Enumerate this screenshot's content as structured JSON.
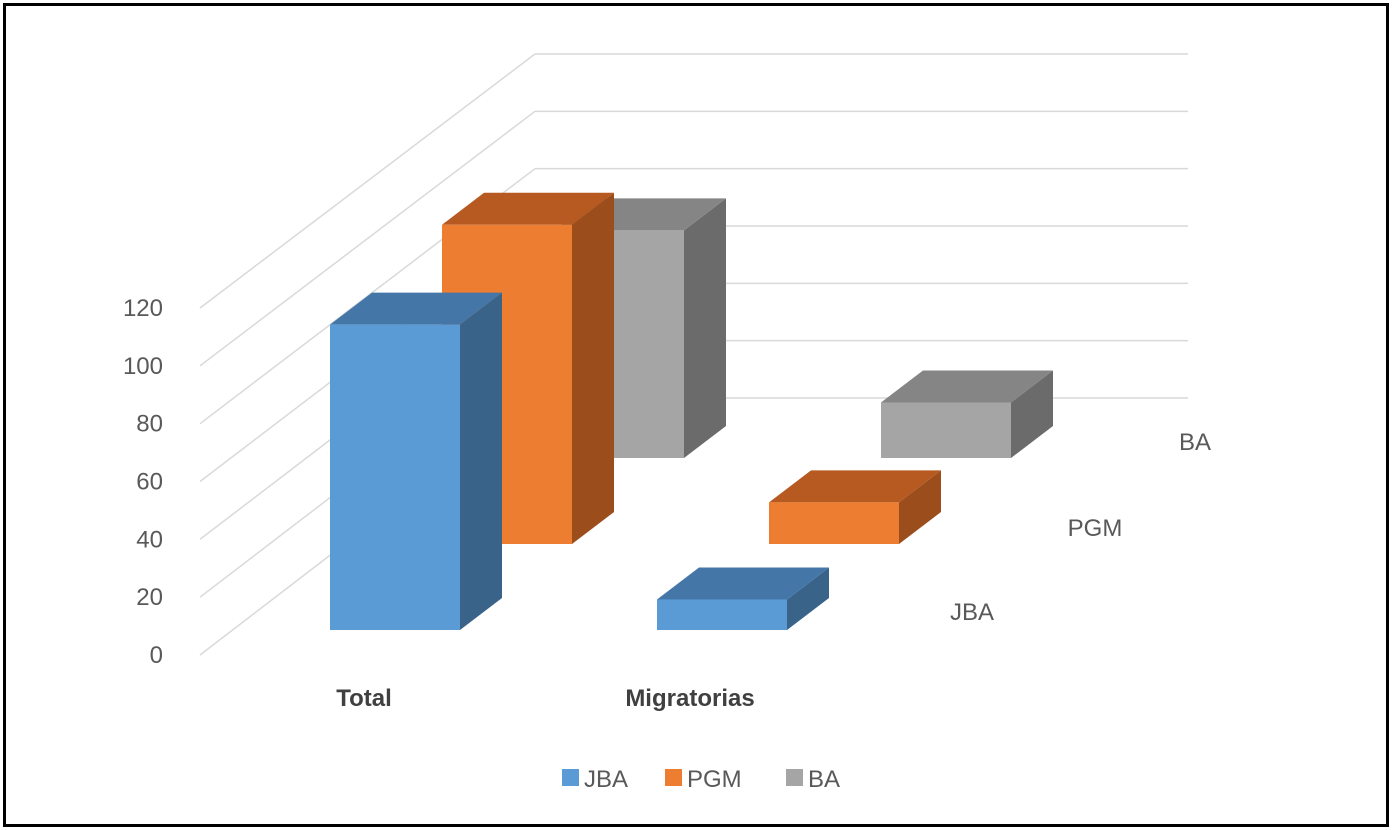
{
  "chart_data": {
    "type": "bar",
    "subtype": "3d-column",
    "categories": [
      "Total",
      "Migratorias"
    ],
    "series": [
      {
        "name": "JBA",
        "values": [
          110,
          11
        ],
        "color": "#5B9BD5",
        "side": "#3A6389",
        "top": "#4477A8"
      },
      {
        "name": "PGM",
        "values": [
          115,
          15
        ],
        "color": "#ED7D31",
        "side": "#9C4D1C",
        "top": "#B65A22"
      },
      {
        "name": "BA",
        "values": [
          82,
          20
        ],
        "color": "#A5A5A5",
        "side": "#6B6B6B",
        "top": "#858585"
      }
    ],
    "yticks": [
      0,
      20,
      40,
      60,
      80,
      100,
      120
    ],
    "ylim": [
      0,
      120
    ],
    "depth_axis_labels": [
      "JBA",
      "PGM",
      "BA"
    ],
    "legend": {
      "position": "bottom",
      "items": [
        "JBA",
        "PGM",
        "BA"
      ]
    },
    "grid": true
  }
}
